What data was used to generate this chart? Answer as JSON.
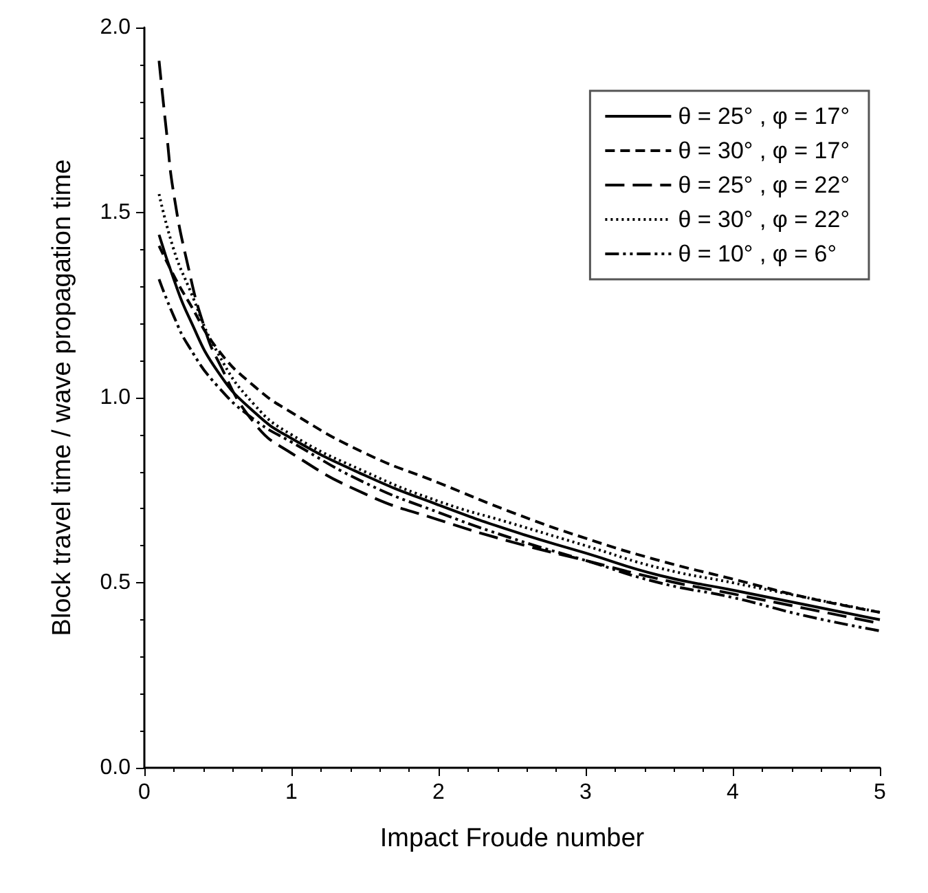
{
  "chart_data": {
    "type": "line",
    "xlabel": "Impact Froude number",
    "ylabel": "Block travel time / wave propagation time",
    "xlim": [
      0,
      5
    ],
    "xticks": [
      0,
      1,
      2,
      3,
      4,
      5
    ],
    "ylim": [
      0,
      2
    ],
    "yticks": [
      {
        "value": 0,
        "label": "0.0"
      },
      {
        "value": 0.5,
        "label": "0.5"
      },
      {
        "value": 1,
        "label": "1.0"
      },
      {
        "value": 1.5,
        "label": "1.5"
      },
      {
        "value": 2,
        "label": "2.0"
      }
    ],
    "grid": false,
    "legend": "top right",
    "marker": "none",
    "series": [
      {
        "name": "θ = 25° , φ = 17°",
        "color": "#000000",
        "line_style": "solid",
        "x": [
          0.1,
          0.2,
          0.3,
          0.5,
          0.75,
          1,
          1.5,
          2,
          2.5,
          3,
          3.5,
          4,
          4.5,
          5
        ],
        "values": [
          1.44,
          1.32,
          1.22,
          1.07,
          0.96,
          0.89,
          0.79,
          0.71,
          0.64,
          0.58,
          0.52,
          0.48,
          0.44,
          0.4
        ]
      },
      {
        "name": "θ = 30° , φ = 17°",
        "color": "#000000",
        "line_style": "dashed",
        "x": [
          0.1,
          0.2,
          0.3,
          0.5,
          0.75,
          1,
          1.5,
          2,
          2.5,
          3,
          3.5,
          4,
          4.5,
          5
        ],
        "values": [
          1.41,
          1.33,
          1.26,
          1.13,
          1.03,
          0.96,
          0.85,
          0.77,
          0.69,
          0.62,
          0.56,
          0.51,
          0.46,
          0.42
        ]
      },
      {
        "name": "θ = 25° , φ = 22°",
        "color": "#000000",
        "line_style": "longdash",
        "x": [
          0.1,
          0.15,
          0.2,
          0.3,
          0.4,
          0.5,
          0.75,
          1,
          1.5,
          2,
          2.5,
          3,
          3.5,
          4,
          4.5,
          5
        ],
        "values": [
          1.91,
          1.72,
          1.55,
          1.35,
          1.2,
          1.1,
          0.93,
          0.85,
          0.74,
          0.67,
          0.61,
          0.56,
          0.51,
          0.47,
          0.43,
          0.39
        ]
      },
      {
        "name": "θ = 30° , φ = 22°",
        "color": "#000000",
        "line_style": "dotted",
        "x": [
          0.1,
          0.2,
          0.3,
          0.5,
          0.75,
          1,
          1.5,
          2,
          2.5,
          3,
          3.5,
          4,
          4.5,
          5
        ],
        "values": [
          1.55,
          1.4,
          1.3,
          1.12,
          0.98,
          0.9,
          0.8,
          0.72,
          0.66,
          0.6,
          0.54,
          0.5,
          0.46,
          0.42
        ]
      },
      {
        "name": "θ = 10° , φ = 6°",
        "color": "#000000",
        "line_style": "dashdotdot",
        "x": [
          0.1,
          0.2,
          0.3,
          0.5,
          0.75,
          1,
          1.5,
          2,
          2.5,
          3,
          3.5,
          4,
          4.5,
          5
        ],
        "values": [
          1.32,
          1.22,
          1.14,
          1.03,
          0.94,
          0.88,
          0.77,
          0.69,
          0.62,
          0.56,
          0.5,
          0.46,
          0.41,
          0.37
        ]
      }
    ]
  }
}
